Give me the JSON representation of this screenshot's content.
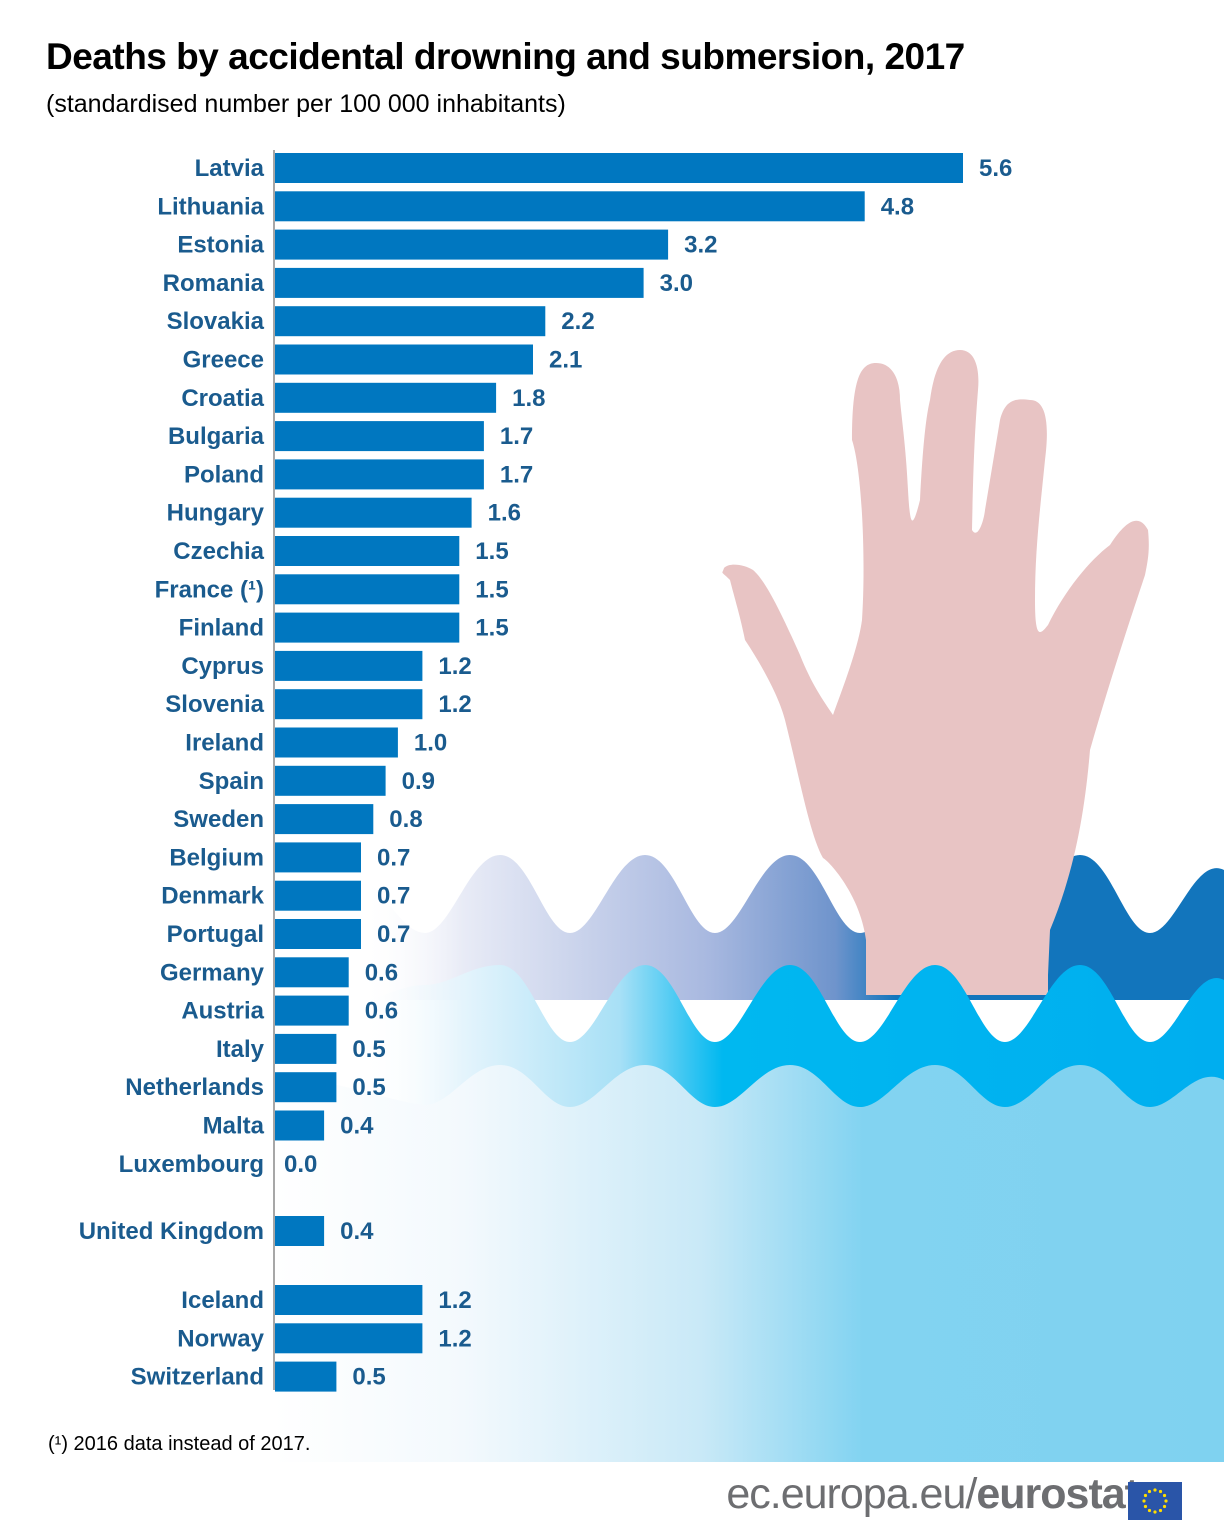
{
  "header": {
    "title": "Deaths by accidental drowning and submersion, 2017",
    "subtitle": "(standardised number per 100 000 inhabitants)"
  },
  "chart_data": {
    "type": "bar",
    "orientation": "horizontal",
    "title": "Deaths by accidental drowning and submersion, 2017",
    "subtitle": "(standardised number per 100 000 inhabitants)",
    "xlabel": "",
    "ylabel": "",
    "xlim": [
      0,
      5.6
    ],
    "grid": false,
    "groups": [
      {
        "name": "EU",
        "categories": [
          "Latvia",
          "Lithuania",
          "Estonia",
          "Romania",
          "Slovakia",
          "Greece",
          "Croatia",
          "Bulgaria",
          "Poland",
          "Hungary",
          "Czechia",
          "France (¹)",
          "Finland",
          "Cyprus",
          "Slovenia",
          "Ireland",
          "Spain",
          "Sweden",
          "Belgium",
          "Denmark",
          "Portugal",
          "Germany",
          "Austria",
          "Italy",
          "Netherlands",
          "Malta",
          "Luxembourg"
        ],
        "values": [
          5.6,
          4.8,
          3.2,
          3.0,
          2.2,
          2.1,
          1.8,
          1.7,
          1.7,
          1.6,
          1.5,
          1.5,
          1.5,
          1.2,
          1.2,
          1.0,
          0.9,
          0.8,
          0.7,
          0.7,
          0.7,
          0.6,
          0.6,
          0.5,
          0.5,
          0.4,
          0.0
        ],
        "labels": [
          "5.6",
          "4.8",
          "3.2",
          "3.0",
          "2.2",
          "2.1",
          "1.8",
          "1.7",
          "1.7",
          "1.6",
          "1.5",
          "1.5",
          "1.5",
          "1.2",
          "1.2",
          "1.0",
          "0.9",
          "0.8",
          "0.7",
          "0.7",
          "0.7",
          "0.6",
          "0.6",
          "0.5",
          "0.5",
          "0.4",
          "0.0"
        ]
      },
      {
        "name": "UK",
        "categories": [
          "United Kingdom"
        ],
        "values": [
          0.4
        ],
        "labels": [
          "0.4"
        ]
      },
      {
        "name": "EFTA",
        "categories": [
          "Iceland",
          "Norway",
          "Switzerland"
        ],
        "values": [
          1.2,
          1.2,
          0.5
        ],
        "labels": [
          "1.2",
          "1.2",
          "0.5"
        ]
      }
    ],
    "colors": {
      "bar": "#0077c0",
      "label": "#1a5b8e"
    }
  },
  "footnote": "(¹) 2016 data instead of 2017.",
  "footer": {
    "url_prefix": "ec.europa.eu/",
    "brand": "eurostat",
    "logo": "eu-flag-icon"
  },
  "illustration": {
    "hand": "raised-hand-icon",
    "waves": "water-waves-icon",
    "colors": {
      "hand": "#e8c4c4",
      "wave_dark": "#1275bc",
      "wave_mid": "#00aeef",
      "wave_light": "#7fd2f0"
    }
  }
}
